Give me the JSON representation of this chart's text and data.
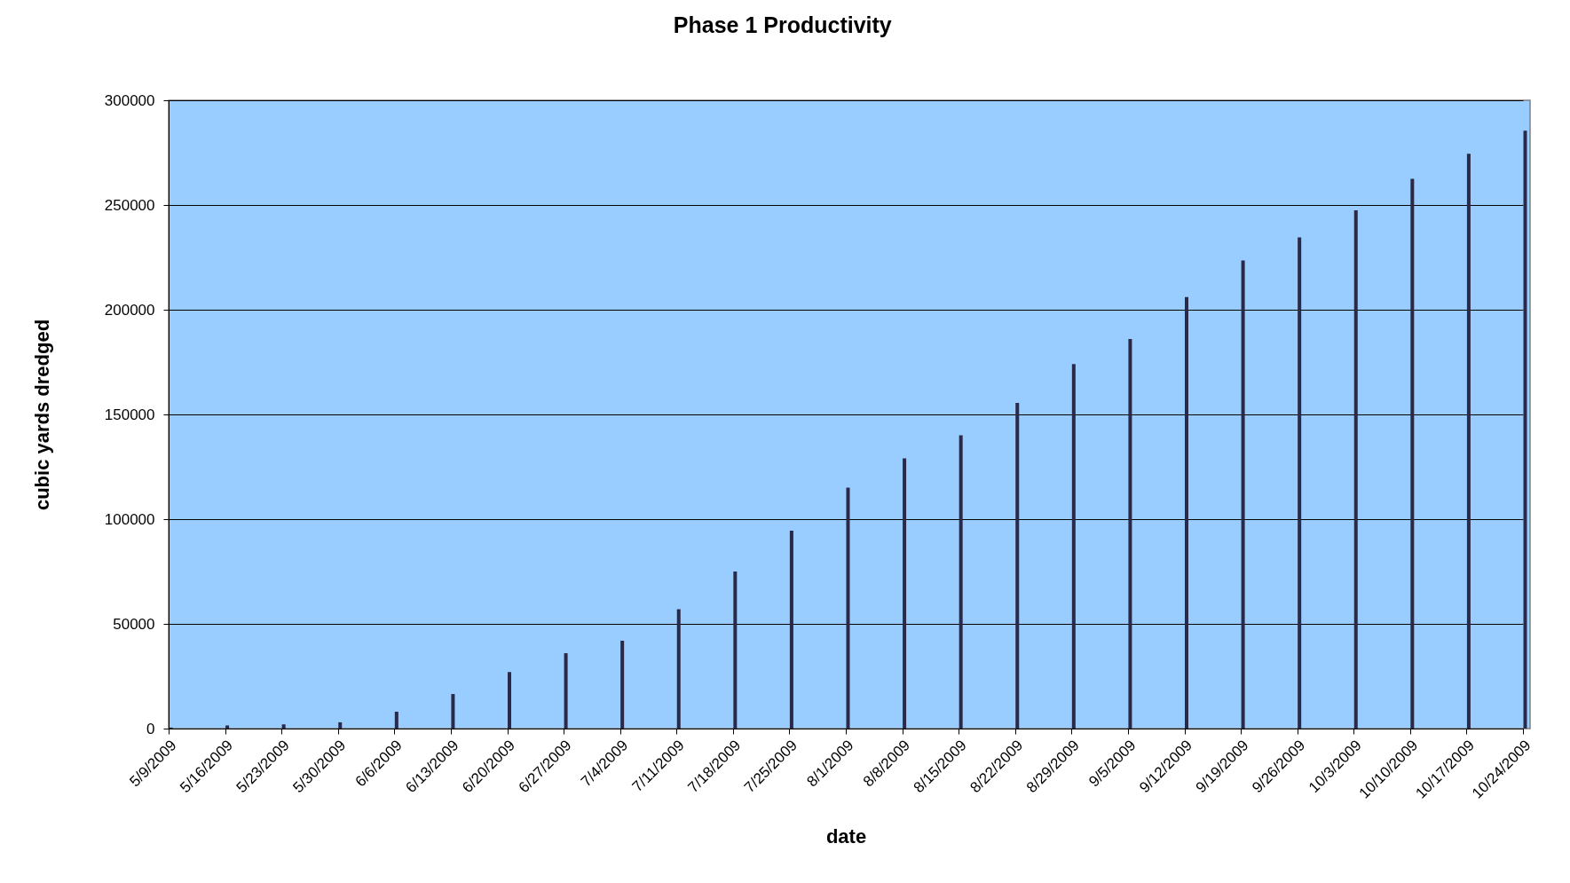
{
  "chart_data": {
    "type": "bar",
    "title": "Phase 1 Productivity",
    "xlabel": "date",
    "ylabel": "cubic yards dredged",
    "categories": [
      "5/9/2009",
      "5/16/2009",
      "5/23/2009",
      "5/30/2009",
      "6/6/2009",
      "6/13/2009",
      "6/20/2009",
      "6/27/2009",
      "7/4/2009",
      "7/11/2009",
      "7/18/2009",
      "7/25/2009",
      "8/1/2009",
      "8/8/2009",
      "8/15/2009",
      "8/22/2009",
      "8/29/2009",
      "9/5/2009",
      "9/12/2009",
      "9/19/2009",
      "9/26/2009",
      "10/3/2009",
      "10/10/2009",
      "10/17/2009",
      "10/24/2009"
    ],
    "values": [
      500,
      1500,
      2000,
      3000,
      8000,
      16500,
      27000,
      36000,
      42000,
      57000,
      75000,
      94500,
      115000,
      129000,
      140000,
      155500,
      174000,
      186000,
      206000,
      223500,
      234500,
      247500,
      262500,
      274500,
      285500
    ],
    "color": "#2a2a48",
    "ylim": [
      0,
      300000
    ],
    "yticks": [
      0,
      50000,
      100000,
      150000,
      200000,
      250000,
      300000
    ],
    "grid": "y"
  }
}
